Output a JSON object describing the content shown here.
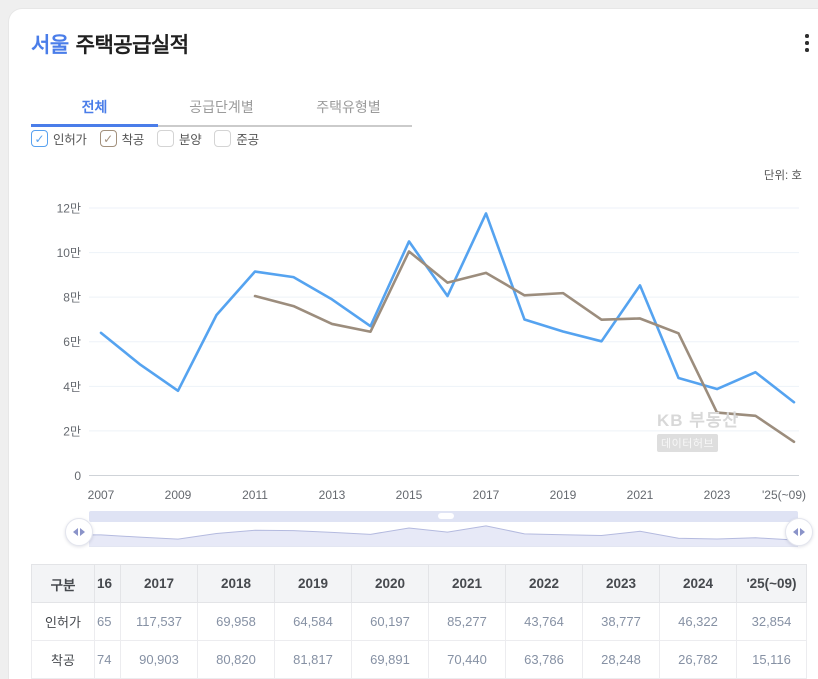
{
  "page": {
    "bg": "#efefef",
    "card_bg": "#ffffff"
  },
  "header": {
    "region": "서울",
    "title": "주택공급실적",
    "menu_icon": "kebab-menu"
  },
  "tabs": {
    "accent": "#4a7de9",
    "items": [
      {
        "label": "전체",
        "active": true
      },
      {
        "label": "공급단계별",
        "active": false
      },
      {
        "label": "주택유형별",
        "active": false
      }
    ]
  },
  "filters": {
    "items": [
      {
        "label": "인허가",
        "checked": true,
        "color": "#58a1ef"
      },
      {
        "label": "착공",
        "checked": true,
        "color": "#a3917d"
      },
      {
        "label": "분양",
        "checked": false,
        "color": "#d4d4d4"
      },
      {
        "label": "준공",
        "checked": false,
        "color": "#d4d4d4"
      }
    ]
  },
  "chart_data": {
    "type": "line",
    "unit_label": "단위: 호",
    "ylabel": "호",
    "ylim": [
      0,
      130000
    ],
    "grid": true,
    "y_ticks": [
      "0",
      "2만",
      "4만",
      "6만",
      "8만",
      "10만",
      "12만"
    ],
    "x_labels": [
      "2007",
      "2009",
      "2011",
      "2013",
      "2015",
      "2017",
      "2019",
      "2021",
      "2023",
      "'25(~09)"
    ],
    "watermark": {
      "line1": "KB 부동산",
      "line2": "데이터허브"
    },
    "series": [
      {
        "name": "인허가",
        "key": "permits",
        "color": "#55a3f0",
        "start_year": 2007,
        "values": [
          64000,
          50000,
          38000,
          72000,
          91500,
          89000,
          79000,
          67000,
          105000,
          80500,
          117537,
          69958,
          64584,
          60197,
          85277,
          43764,
          38777,
          46322,
          32854
        ]
      },
      {
        "name": "착공",
        "key": "starts",
        "color": "#9c8d7d",
        "start_year": 2011,
        "values": [
          80500,
          76000,
          68000,
          64500,
          100500,
          86500,
          90903,
          80820,
          81817,
          69891,
          70440,
          63786,
          28248,
          26782,
          15116
        ]
      }
    ]
  },
  "table": {
    "columns": [
      "구분",
      "16",
      "2017",
      "2018",
      "2019",
      "2020",
      "2021",
      "2022",
      "2023",
      "2024",
      "'25(~09)"
    ],
    "rows": [
      {
        "label": "인허가",
        "values": [
          "65",
          "117,537",
          "69,958",
          "64,584",
          "60,197",
          "85,277",
          "43,764",
          "38,777",
          "46,322",
          "32,854"
        ]
      },
      {
        "label": "착공",
        "values": [
          "74",
          "90,903",
          "80,820",
          "81,817",
          "69,891",
          "70,440",
          "63,786",
          "28,248",
          "26,782",
          "15,116"
        ]
      }
    ]
  }
}
